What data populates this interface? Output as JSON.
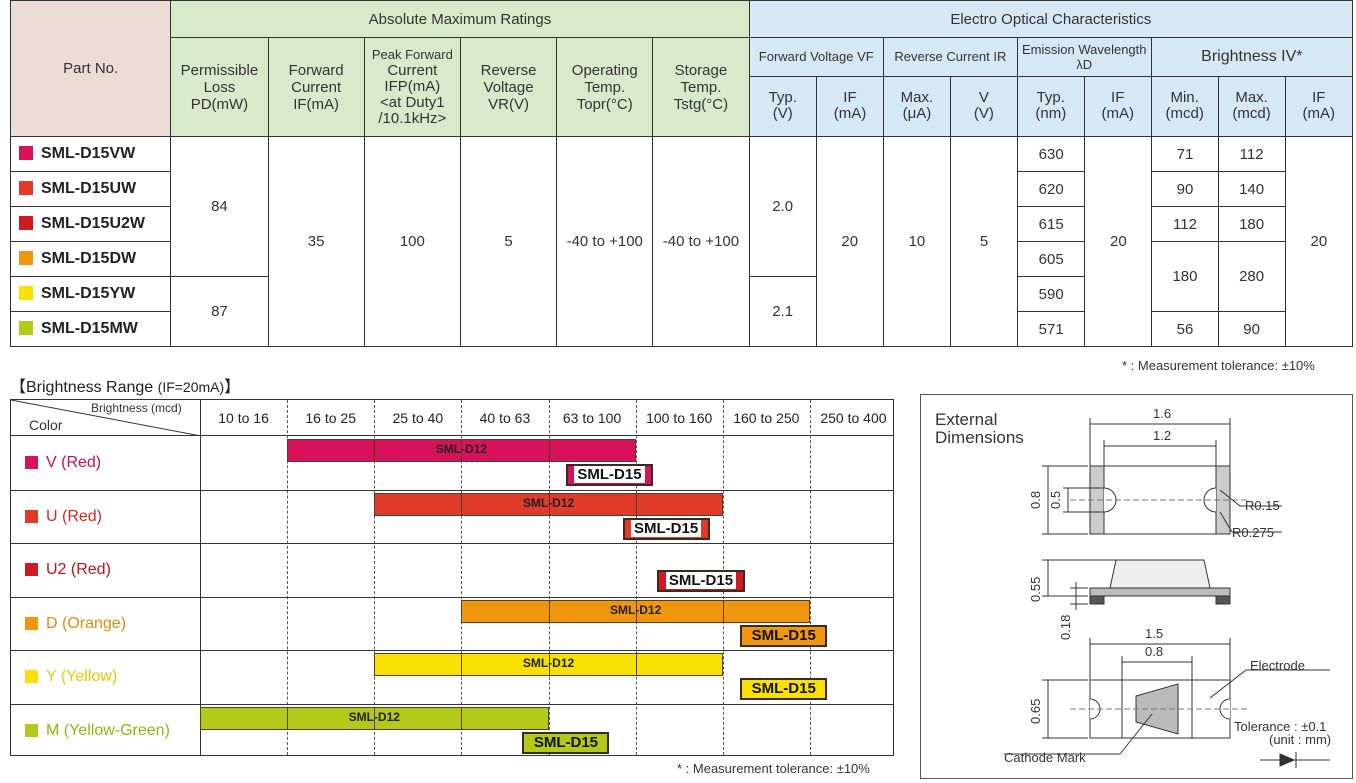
{
  "spec_table": {
    "part_no_label": "Part No.",
    "abs_max_title": "Absolute Maximum Ratings",
    "eo_title": "Electro Optical Characteristics",
    "abs_cols": [
      {
        "l1": "Permissible",
        "l2": "Loss",
        "l3": "PD(mW)"
      },
      {
        "l1": "Forward",
        "l2": "Current",
        "l3": "IF(mA)"
      },
      {
        "l1": "Peak Forward",
        "l2": "Current",
        "l3": "IFP(mA)",
        "l4": "<at Duty1",
        "l5": "/10.1kHz>"
      },
      {
        "l1": "Reverse",
        "l2": "Voltage",
        "l3": "VR(V)"
      },
      {
        "l1": "Operating",
        "l2": "Temp.",
        "l3": "Topr(°C)"
      },
      {
        "l1": "Storage",
        "l2": "Temp.",
        "l3": "Tstg(°C)"
      }
    ],
    "eo_groups": [
      "Forward Voltage VF",
      "Reverse Current IR",
      "Emission Wavelength λD",
      "Brightness IV*"
    ],
    "eo_sub": [
      {
        "l1": "Typ.",
        "l2": "(V)"
      },
      {
        "l1": "IF",
        "l2": "(mA)"
      },
      {
        "l1": "Max.",
        "l2": "(μA)"
      },
      {
        "l1": "V",
        "l2": "(V)"
      },
      {
        "l1": "Typ.",
        "l2": "(nm)"
      },
      {
        "l1": "IF",
        "l2": "(mA)"
      },
      {
        "l1": "Min.",
        "l2": "(mcd)"
      },
      {
        "l1": "Max.",
        "l2": "(mcd)"
      },
      {
        "l1": "IF",
        "l2": "(mA)"
      }
    ],
    "parts": [
      {
        "name": "SML-D15VW",
        "color": "#d8125a",
        "wl": "630"
      },
      {
        "name": "SML-D15UW",
        "color": "#e03a2a",
        "wl": "620"
      },
      {
        "name": "SML-D15U2W",
        "color": "#d01a22",
        "wl": "615"
      },
      {
        "name": "SML-D15DW",
        "color": "#f0960f",
        "wl": "605"
      },
      {
        "name": "SML-D15YW",
        "color": "#f8e000",
        "wl": "590"
      },
      {
        "name": "SML-D15MW",
        "color": "#b5c91a",
        "wl": "571"
      }
    ],
    "pd_a": "84",
    "pd_b": "87",
    "if_abs": "35",
    "ifp": "100",
    "vr": "5",
    "topr": "-40 to +100",
    "tstg": "-40 to +100",
    "vf_a": "2.0",
    "vf_b": "2.1",
    "vf_if": "20",
    "ir_max": "10",
    "ir_v": "5",
    "wl_if": "20",
    "iv": [
      {
        "min": "71",
        "max": "112"
      },
      {
        "min": "90",
        "max": "140"
      },
      {
        "min": "112",
        "max": "180"
      },
      {
        "min": "180",
        "max": "280"
      },
      {
        "min": "56",
        "max": "90"
      }
    ],
    "iv_if": "20"
  },
  "note1": "* : Measurement tolerance: ±10%",
  "brightness": {
    "title": "【Brightness Range",
    "title_sub": "(IF=20mA)",
    "title_end": "】",
    "corner_top": "Brightness (mcd)",
    "corner_bottom": "Color",
    "ranges": [
      "10 to 16",
      "16 to 25",
      "25 to 40",
      "40 to 63",
      "63 to 100",
      "100 to 160",
      "160 to 250",
      "250 to 400"
    ],
    "rows": [
      {
        "label": "V (Red)",
        "color": "#d8125a",
        "text_color": "#c8104e",
        "d12": [
          1,
          5
        ],
        "d15": [
          4.2,
          5.2
        ]
      },
      {
        "label": "U (Red)",
        "color": "#e03a2a",
        "text_color": "#d02a1c",
        "d12": [
          2,
          6
        ],
        "d15": [
          4.85,
          5.85
        ]
      },
      {
        "label": "U2 (Red)",
        "color": "#d01a22",
        "text_color": "#c8101a",
        "d12": null,
        "d15": [
          5.25,
          6.25
        ]
      },
      {
        "label": "D (Orange)",
        "color": "#f0960f",
        "text_color": "#e08a0a",
        "d12": [
          3,
          7
        ],
        "d15": [
          6.2,
          7.2
        ]
      },
      {
        "label": "Y (Yellow)",
        "color": "#f8e000",
        "text_color": "#e8c800",
        "d12": [
          2,
          6
        ],
        "d15": [
          6.2,
          7.2
        ]
      },
      {
        "label": "M (Yellow-Green)",
        "color": "#b5c91a",
        "text_color": "#9ab010",
        "d12": [
          0,
          4
        ],
        "d15": [
          3.7,
          4.7
        ]
      }
    ],
    "d12_label": "SML-D12",
    "d15_label": "SML-D15",
    "note": "* : Measurement tolerance: ±10%"
  },
  "dimensions": {
    "title1": "External",
    "title2": "Dimensions",
    "w_outer": "1.6",
    "w_inner": "1.2",
    "h_outer": "0.8",
    "h_inner": "0.5",
    "r1": "R0.15",
    "r2": "R0.275",
    "side_h": "0.55",
    "side_t": "0.18",
    "b_w": "1.5",
    "b_inner": "0.8",
    "b_h": "0.65",
    "electrode": "Electrode",
    "cathode": "Cathode Mark",
    "tol1": "Tolerance : ±0.1",
    "tol2": "(unit : mm)"
  }
}
